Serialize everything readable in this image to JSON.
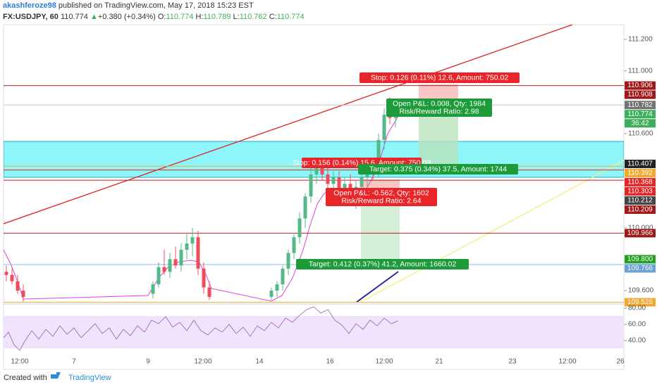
{
  "header": {
    "author": "akashferoze98",
    "published": "published on TradingView.com, May 17, 2018 15:23 EST",
    "symbol": "FX:USDJPY, 60",
    "last": "110.774",
    "arrow": "▲",
    "change": "+0.380 (+0.34%)",
    "ohlc": [
      {
        "key": "O:",
        "value": "110.774"
      },
      {
        "key": "H:",
        "value": "110.789"
      },
      {
        "key": "L:",
        "value": "110.762"
      },
      {
        "key": "C:",
        "value": "110.774"
      }
    ]
  },
  "chart_data": {
    "type": "candlestick",
    "up_color": "#53b987",
    "down_color": "#eb4d5c",
    "ylim": [
      109.524,
      111.294
    ],
    "yticks": [
      {
        "value": 111.2,
        "label": "111.200"
      },
      {
        "value": 111.0,
        "label": "111.000"
      },
      {
        "value": 110.6,
        "label": "110.600"
      },
      {
        "value": 110.0,
        "label": "110.000"
      },
      {
        "value": 109.6,
        "label": "109.600"
      }
    ],
    "x_labels": [
      "12:00",
      "7",
      "9",
      "12:00",
      "14",
      "16",
      "12:00",
      "21",
      "23",
      "12:00",
      "26"
    ],
    "open": [
      109.72,
      109.7,
      109.66,
      109.6,
      null,
      null,
      null,
      null,
      null,
      null,
      null,
      null,
      null,
      null,
      null,
      null,
      null,
      null,
      null,
      null,
      null,
      null,
      null,
      null,
      null,
      null,
      109.58,
      109.64,
      109.75,
      109.72,
      109.8,
      109.76,
      109.86,
      109.9,
      109.94,
      109.74,
      109.62,
      null,
      null,
      null,
      null,
      null,
      null,
      null,
      null,
      null,
      null,
      109.56,
      109.6,
      109.64,
      109.74,
      109.84,
      109.94,
      110.06,
      110.2,
      110.34,
      110.38,
      110.34,
      110.28,
      110.32,
      110.24,
      110.28,
      110.18,
      110.26,
      110.32,
      110.36,
      110.34,
      110.56,
      110.72,
      110.7
    ],
    "high": [
      109.76,
      109.74,
      109.7,
      109.64,
      null,
      null,
      null,
      null,
      null,
      null,
      null,
      null,
      null,
      null,
      null,
      null,
      null,
      null,
      null,
      null,
      null,
      null,
      null,
      null,
      null,
      null,
      109.66,
      109.78,
      109.86,
      109.84,
      109.88,
      109.9,
      109.96,
      110.0,
      109.98,
      109.78,
      109.66,
      null,
      null,
      null,
      null,
      null,
      null,
      null,
      null,
      null,
      null,
      109.62,
      109.66,
      109.76,
      109.86,
      109.96,
      110.1,
      110.22,
      110.38,
      110.44,
      110.42,
      110.38,
      110.36,
      110.36,
      110.32,
      110.34,
      110.3,
      110.36,
      110.4,
      110.42,
      110.6,
      110.76,
      110.83,
      110.8
    ],
    "low": [
      109.66,
      109.64,
      109.58,
      109.53,
      null,
      null,
      null,
      null,
      null,
      null,
      null,
      null,
      null,
      null,
      null,
      null,
      null,
      null,
      null,
      null,
      null,
      null,
      null,
      null,
      null,
      null,
      109.55,
      109.62,
      109.7,
      109.68,
      109.74,
      109.72,
      109.8,
      109.82,
      109.7,
      109.58,
      109.54,
      null,
      null,
      null,
      null,
      null,
      null,
      null,
      null,
      null,
      null,
      109.54,
      109.56,
      109.6,
      109.7,
      109.8,
      109.9,
      110.0,
      110.16,
      110.28,
      110.3,
      110.24,
      110.22,
      110.2,
      110.16,
      110.14,
      110.12,
      110.2,
      110.24,
      110.3,
      110.32,
      110.5,
      110.66,
      110.64
    ],
    "close": [
      109.7,
      109.66,
      109.6,
      109.56,
      null,
      null,
      null,
      null,
      null,
      null,
      null,
      null,
      null,
      null,
      null,
      null,
      null,
      null,
      null,
      null,
      null,
      null,
      null,
      null,
      null,
      null,
      109.64,
      109.75,
      109.72,
      109.8,
      109.76,
      109.86,
      109.9,
      109.94,
      109.74,
      109.62,
      109.56,
      null,
      null,
      null,
      null,
      null,
      null,
      null,
      null,
      null,
      null,
      109.6,
      109.64,
      109.74,
      109.84,
      109.94,
      110.06,
      110.2,
      110.34,
      110.38,
      110.34,
      110.28,
      110.32,
      110.24,
      110.28,
      110.18,
      110.26,
      110.32,
      110.36,
      110.34,
      110.56,
      110.72,
      110.7,
      110.774
    ],
    "price_labels": [
      {
        "value": 110.906,
        "label": "110.906",
        "color": "#a01818",
        "line_color": "#b22222"
      },
      {
        "value": 110.908,
        "label": "110.908",
        "color": "#a01818"
      },
      {
        "value": 110.782,
        "label": "110.782",
        "color": "#737375",
        "line_color": "#c8c8c8"
      },
      {
        "value": 110.774,
        "label": "110.774",
        "color": "#3fae5a"
      },
      {
        "label": "36:42",
        "color": "#3fae5a"
      },
      {
        "value": 110.407,
        "label": "110.407",
        "color": "#222222"
      },
      {
        "value": 110.392,
        "label": "110.392",
        "color": "#f0a830",
        "line_color": "#f0b030"
      },
      {
        "value": 110.368,
        "label": "110.368",
        "color": "#e22525",
        "line_color": "#d32f2f"
      },
      {
        "value": 110.303,
        "label": "110.303",
        "color": "#e22525",
        "line_color": "#b22222"
      },
      {
        "value": 110.212,
        "label": "110.212",
        "color": "#444444"
      },
      {
        "value": 110.209,
        "label": "110.209",
        "color": "#a01818"
      },
      {
        "value": 109.966,
        "label": "109.966",
        "color": "#a01818",
        "line_color": "#b22222"
      },
      {
        "value": 109.8,
        "label": "109.800",
        "color": "#22a022"
      },
      {
        "value": 109.766,
        "label": "109.766",
        "color": "#6a9fd8",
        "line_color": "#8fbbe8"
      },
      {
        "value": 109.526,
        "label": "109.526",
        "color": "#f0a830",
        "line_color": "#f0b030"
      }
    ],
    "annotations": [
      "Stop: 0.126 (0.11%) 12.6, Amount: 750.02",
      "Open P&L: 0.008, Qty: 1984",
      "Risk/Reward Ratio: 2.98",
      "Stop: 0.156 (0.14%) 15.6, Amount: 750.09",
      "Target: 0.375 (0.34%) 37.5, Amount: 1744",
      "Open P&L: -0.562, Qty: 1602",
      "Risk/Reward Ratio: 2.64",
      "Target: 0.412 (0.37%) 41.2, Amount: 1660.02"
    ],
    "rsi": {
      "ylim": [
        26.1,
        85.2
      ],
      "yticks": [
        {
          "value": 80,
          "label": "80.00"
        },
        {
          "value": 60,
          "label": "60.00"
        },
        {
          "value": 40,
          "label": "40.00"
        }
      ]
    }
  },
  "footer": {
    "created": "Created with",
    "brand": "TradingView"
  }
}
